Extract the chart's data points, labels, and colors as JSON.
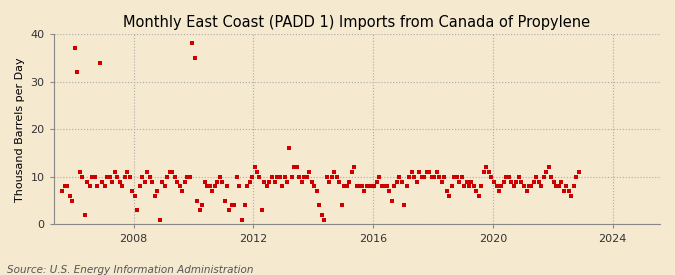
{
  "title": "Monthly East Coast (PADD 1) Imports from Canada of Propylene",
  "ylabel": "Thousand Barrels per Day",
  "source": "Source: U.S. Energy Information Administration",
  "background_color": "#f5e9d0",
  "plot_background_color": "#f5e9d0",
  "marker_color": "#cc0000",
  "grid_color": "#aaaaaa",
  "ylim": [
    0,
    40
  ],
  "yticks": [
    0,
    10,
    20,
    30,
    40
  ],
  "title_fontsize": 10.5,
  "ylabel_fontsize": 8,
  "tick_fontsize": 8,
  "source_fontsize": 7.5,
  "start_year": 2005,
  "start_month": 8,
  "values": [
    7,
    8,
    8,
    6,
    5,
    37,
    32,
    11,
    10,
    2,
    9,
    8,
    10,
    10,
    8,
    34,
    9,
    8,
    10,
    10,
    9,
    11,
    10,
    9,
    8,
    10,
    11,
    10,
    7,
    6,
    3,
    8,
    10,
    9,
    11,
    10,
    9,
    6,
    7,
    1,
    9,
    8,
    10,
    11,
    11,
    10,
    9,
    8,
    7,
    9,
    10,
    10,
    38,
    35,
    5,
    3,
    4,
    9,
    8,
    8,
    7,
    8,
    9,
    10,
    9,
    5,
    8,
    3,
    4,
    4,
    10,
    8,
    1,
    4,
    8,
    9,
    10,
    12,
    11,
    10,
    3,
    9,
    8,
    9,
    10,
    9,
    10,
    10,
    8,
    10,
    9,
    16,
    10,
    12,
    12,
    10,
    9,
    10,
    10,
    11,
    9,
    8,
    7,
    4,
    2,
    1,
    10,
    9,
    10,
    11,
    10,
    9,
    4,
    8,
    8,
    9,
    11,
    12,
    8,
    8,
    8,
    7,
    8,
    8,
    8,
    8,
    9,
    10,
    8,
    8,
    8,
    7,
    5,
    8,
    9,
    10,
    9,
    4,
    8,
    10,
    11,
    10,
    9,
    11,
    10,
    10,
    11,
    11,
    10,
    10,
    11,
    10,
    9,
    10,
    7,
    6,
    8,
    10,
    10,
    9,
    10,
    8,
    9,
    8,
    9,
    8,
    7,
    6,
    8,
    11,
    12,
    11,
    10,
    9,
    8,
    7,
    8,
    9,
    10,
    10,
    9,
    8,
    9,
    10,
    9,
    8,
    7,
    8,
    8,
    9,
    10,
    9,
    8,
    10,
    11,
    12,
    10,
    9,
    8,
    8,
    9,
    7,
    8,
    7,
    6,
    8,
    10,
    11
  ]
}
